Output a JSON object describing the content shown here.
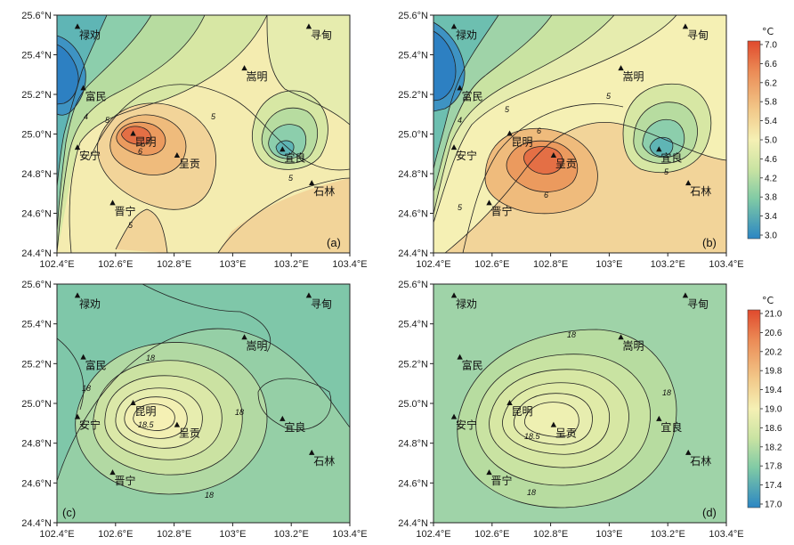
{
  "x_ticks": [
    "102.4°E",
    "102.6°E",
    "102.8°E",
    "103°E",
    "103.2°E",
    "103.4°E"
  ],
  "y_ticks": [
    "24.4°N",
    "24.6°N",
    "24.8°N",
    "25.0°N",
    "25.2°N",
    "25.4°N",
    "25.6°N"
  ],
  "cities": [
    {
      "name": "禄劝",
      "lon": 102.47,
      "lat": 25.54
    },
    {
      "name": "寻甸",
      "lon": 103.26,
      "lat": 25.54
    },
    {
      "name": "嵩明",
      "lon": 103.04,
      "lat": 25.33
    },
    {
      "name": "富民",
      "lon": 102.49,
      "lat": 25.23
    },
    {
      "name": "昆明",
      "lon": 102.66,
      "lat": 25.0
    },
    {
      "name": "呈贡",
      "lon": 102.81,
      "lat": 24.89
    },
    {
      "name": "宜良",
      "lon": 103.17,
      "lat": 24.92
    },
    {
      "name": "安宁",
      "lon": 102.47,
      "lat": 24.93
    },
    {
      "name": "石林",
      "lon": 103.27,
      "lat": 24.75
    },
    {
      "name": "晋宁",
      "lon": 102.59,
      "lat": 24.65
    }
  ],
  "colorbars": [
    {
      "unit": "°C",
      "ticks": [
        "7.0",
        "6.6",
        "6.2",
        "5.8",
        "5.4",
        "5.0",
        "4.6",
        "4.2",
        "3.8",
        "3.4",
        "3.0"
      ]
    },
    {
      "unit": "°C",
      "ticks": [
        "21.0",
        "20.6",
        "20.2",
        "19.8",
        "19.4",
        "19.0",
        "18.6",
        "18.2",
        "17.8",
        "17.4",
        "17.0"
      ]
    }
  ],
  "panels": [
    {
      "label": "(a)",
      "contour_labels": [
        "4",
        "5",
        "6",
        "5",
        "5",
        "5"
      ]
    },
    {
      "label": "(b)",
      "contour_labels": [
        "4",
        "5",
        "6",
        "5",
        "6",
        "5",
        "5"
      ]
    },
    {
      "label": "(c)",
      "contour_labels": [
        "18",
        "18",
        "18.5",
        "18",
        "18"
      ]
    },
    {
      "label": "(d)",
      "contour_labels": [
        "18",
        "18",
        "18.5",
        "18"
      ]
    }
  ]
}
